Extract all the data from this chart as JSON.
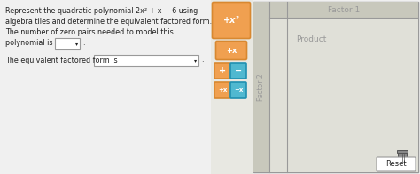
{
  "bg_color": "#f0f0f0",
  "text_color": "#222222",
  "label_color": "#999999",
  "border_color": "#999999",
  "orange_color": "#f0a050",
  "orange_border": "#d88830",
  "blue_color": "#50b8d0",
  "blue_border": "#2090b0",
  "grid_bg": "#d8d8cc",
  "panel_bg": "#c8c8bc",
  "inner_bg": "#e0e0d8",
  "white": "#ffffff",
  "tile_column_bg": "#e8e8e2",
  "factor1_label": "Factor 1",
  "factor2_label": "Factor 2",
  "product_label": "Product",
  "reset_label": "Reset",
  "tile_x2_label": "+x²",
  "tile_x_label": "+x",
  "tile_plus_label": "+",
  "tile_minus_label": "−",
  "tile_posx_label": "+x",
  "tile_negx_label": "−x",
  "line1": "Represent the quadratic polynomial 2x² + x − 6 using",
  "line2": "algebra tiles and determine the equivalent factored form.",
  "line3": "The number of zero pairs needed to model this",
  "line4": "polynomial is",
  "line5": "The equivalent factored form is"
}
